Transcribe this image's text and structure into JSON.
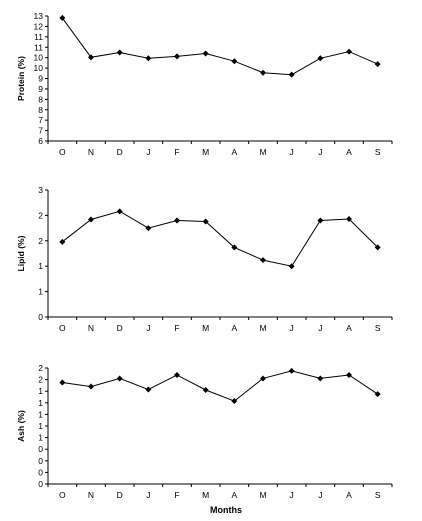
{
  "chart_data": [
    {
      "type": "line",
      "ylabel": "Protein (%)",
      "categories": [
        "O",
        "N",
        "D",
        "J",
        "F",
        "M",
        "A",
        "M",
        "J",
        "J",
        "A",
        "S"
      ],
      "y_ticks": [
        "13",
        "12",
        "11",
        "11",
        "10",
        "10",
        "9",
        "9",
        "8",
        "8",
        "7",
        "7",
        "6"
      ],
      "ylim": [
        6,
        12.5
      ],
      "values": [
        12.4,
        10.35,
        10.6,
        10.3,
        10.4,
        10.55,
        10.15,
        9.55,
        9.45,
        10.3,
        10.65,
        10.0
      ]
    },
    {
      "type": "line",
      "ylabel": "Lipid (%)",
      "categories": [
        "O",
        "N",
        "D",
        "J",
        "F",
        "M",
        "A",
        "M",
        "J",
        "J",
        "A",
        "S"
      ],
      "y_ticks": [
        "3",
        "2",
        "2",
        "1",
        "1",
        "0"
      ],
      "ylim": [
        0,
        2.5
      ],
      "values": [
        1.48,
        1.92,
        2.08,
        1.75,
        1.9,
        1.88,
        1.37,
        1.12,
        1.0,
        1.9,
        1.93,
        1.37
      ]
    },
    {
      "type": "line",
      "ylabel": "Ash (%)",
      "categories": [
        "O",
        "N",
        "D",
        "J",
        "F",
        "M",
        "A",
        "M",
        "J",
        "J",
        "A",
        "S"
      ],
      "y_ticks": [
        "2",
        "2",
        "1",
        "1",
        "1",
        "1",
        "1",
        "0",
        "0",
        "0",
        "0"
      ],
      "ylim": [
        0,
        2.0
      ],
      "values": [
        1.75,
        1.68,
        1.82,
        1.63,
        1.88,
        1.62,
        1.43,
        1.82,
        1.95,
        1.82,
        1.88,
        1.55
      ]
    }
  ],
  "x_axis_label": "Months"
}
